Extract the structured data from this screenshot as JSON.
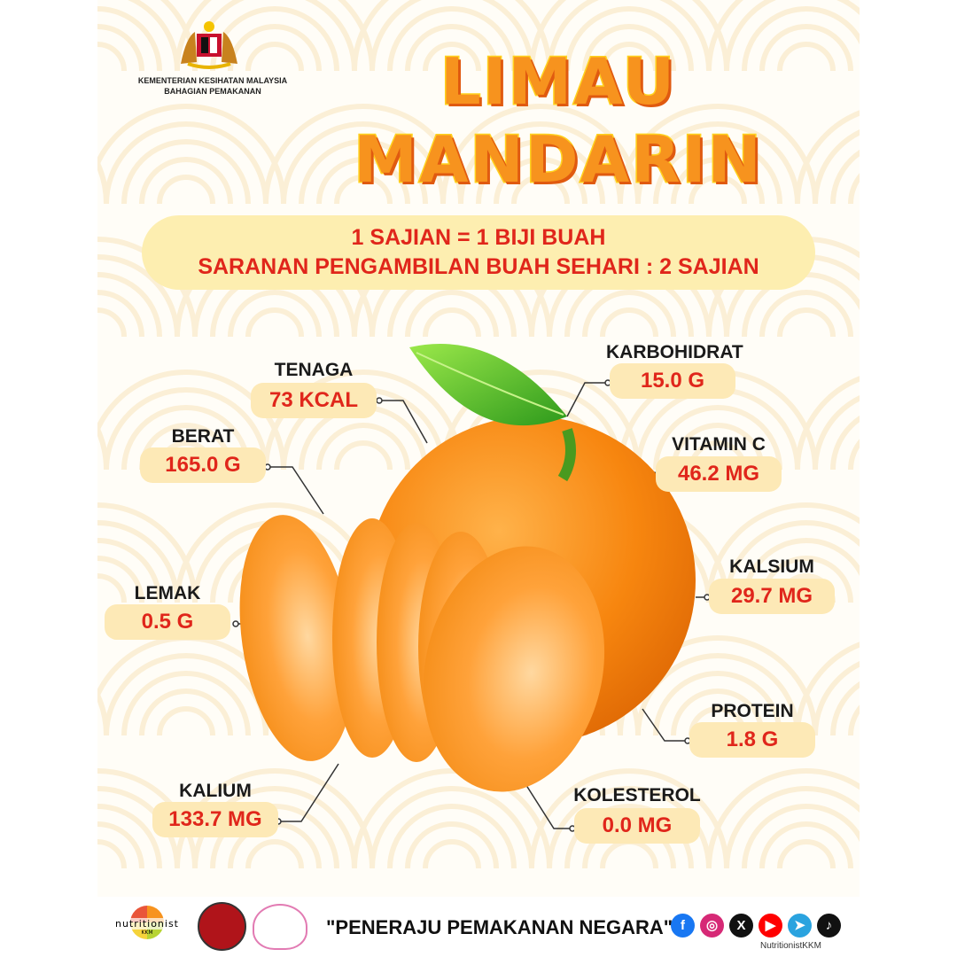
{
  "header": {
    "ministry_line1": "KEMENTERIAN KESIHATAN MALAYSIA",
    "ministry_line2": "BAHAGIAN PEMAKANAN",
    "title_line1": "LIMAU",
    "title_line2": "MANDARIN"
  },
  "banner": {
    "line1": "1 SAJIAN = 1 BIJI BUAH",
    "line2": "SARANAN PENGAMBILAN BUAH SEHARI : 2 SAJIAN"
  },
  "nutrients": [
    {
      "label": "TENAGA",
      "value": "73 KCAL"
    },
    {
      "label": "BERAT",
      "value": "165.0 G"
    },
    {
      "label": "LEMAK",
      "value": "0.5 G"
    },
    {
      "label": "KALIUM",
      "value": "133.7 MG"
    },
    {
      "label": "KARBOHIDRAT",
      "value": "15.0 G"
    },
    {
      "label": "VITAMIN C",
      "value": "46.2 MG"
    },
    {
      "label": "KALSIUM",
      "value": "29.7 MG"
    },
    {
      "label": "PROTEIN",
      "value": "1.8 G"
    },
    {
      "label": "KOLESTEROL",
      "value": "0.0 MG"
    }
  ],
  "footer": {
    "logo_text": "nutritionist",
    "logo_sub": "KKM",
    "slogan": "\"PENERAJU PEMAKANAN NEGARA\"",
    "handle": "NutritionistKKM",
    "social": [
      {
        "icon": "facebook-icon",
        "color": "#1877f2"
      },
      {
        "icon": "instagram-icon",
        "color": "#d62976"
      },
      {
        "icon": "x-icon",
        "color": "#111111"
      },
      {
        "icon": "youtube-icon",
        "color": "#ff0000"
      },
      {
        "icon": "telegram-icon",
        "color": "#2aa3df"
      },
      {
        "icon": "tiktok-icon",
        "color": "#111111"
      }
    ]
  },
  "colors": {
    "title": "#f7931e",
    "value_text": "#e0261b",
    "value_bg": "#fde9b6",
    "banner_bg": "#fdeeb0"
  }
}
